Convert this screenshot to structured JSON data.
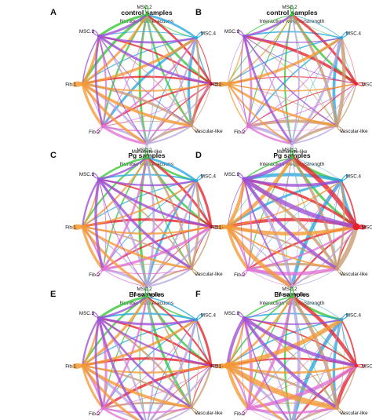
{
  "panels": [
    {
      "letter": "A",
      "title": "control samples",
      "subtitle": "Number of interactions",
      "variant": "count",
      "hub": null
    },
    {
      "letter": "B",
      "title": "control samples",
      "subtitle": "Interaction weights/strength",
      "variant": "weight",
      "hub": null
    },
    {
      "letter": "C",
      "title": "Pg samples",
      "subtitle": "Number of interactions",
      "variant": "count",
      "hub": null
    },
    {
      "letter": "D",
      "title": "Pg samples",
      "subtitle": "Interaction weights/strength",
      "variant": "weight",
      "hub": "MSC.1"
    },
    {
      "letter": "E",
      "title": "Ef samples",
      "subtitle": "Number of interactions",
      "variant": "count",
      "hub": null
    },
    {
      "letter": "F",
      "title": "Ef samples",
      "subtitle": "Interaction weights/strength",
      "variant": "weight",
      "hub": "Fib.1"
    }
  ],
  "nodes": [
    {
      "name": "MSC.2",
      "color": "#34c634"
    },
    {
      "name": "MSC.4",
      "color": "#27a8e0"
    },
    {
      "name": "MSC.1",
      "color": "#e8202a"
    },
    {
      "name": "Vascular-like",
      "color": "#c89a6e"
    },
    {
      "name": "Monocyte-like",
      "color": "#b9a7e2"
    },
    {
      "name": "Fib.2",
      "color": "#e26fd6"
    },
    {
      "name": "Fib.1",
      "color": "#f59a33"
    },
    {
      "name": "MSC.3",
      "color": "#9d4fd6"
    }
  ]
}
